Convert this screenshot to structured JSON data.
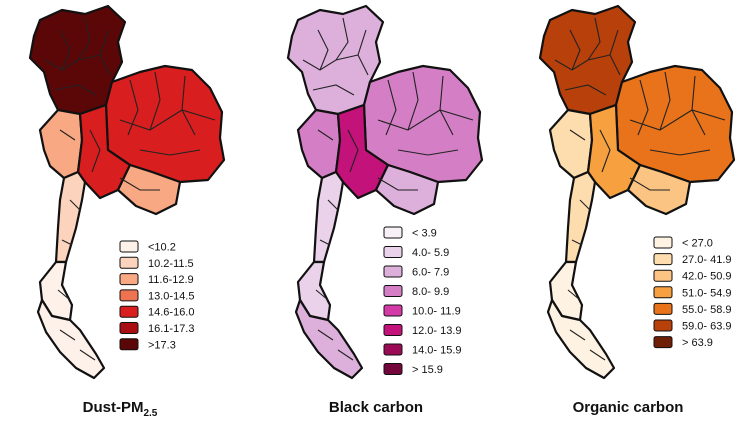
{
  "maps": [
    {
      "caption": "Dust-PM",
      "caption_sub": "2.5",
      "legend": [
        {
          "label": "<10.2",
          "color": "#fdf1ea"
        },
        {
          "label": "10.2-11.5",
          "color": "#fcd3bd"
        },
        {
          "label": "11.6-12.9",
          "color": "#f8a882"
        },
        {
          "label": "13.0-14.5",
          "color": "#ee7350"
        },
        {
          "label": "14.6-16.0",
          "color": "#d81e1e"
        },
        {
          "label": "16.1-17.3",
          "color": "#a80e12"
        },
        {
          "label": ">17.3",
          "color": "#5c0707"
        }
      ],
      "region_classes": {
        "north": 6,
        "northeast": 4,
        "center": 4,
        "west": 2,
        "east": 2,
        "southupper": 1,
        "southmid": 0,
        "southlow": 0
      }
    },
    {
      "caption": "Black carbon",
      "legend": [
        {
          "label": "< 3.9",
          "color": "#f7f0f7"
        },
        {
          "label": "4.0- 5.9",
          "color": "#ead2ea"
        },
        {
          "label": "6.0- 7.9",
          "color": "#ddb0dc"
        },
        {
          "label": "8.0- 9.9",
          "color": "#d47fc5"
        },
        {
          "label": "10.0- 11.9",
          "color": "#d33aa8"
        },
        {
          "label": "12.0- 13.9",
          "color": "#c3127a"
        },
        {
          "label": "14.0- 15.9",
          "color": "#9b0a55"
        },
        {
          "label": "> 15.9",
          "color": "#73073c"
        }
      ],
      "region_classes": {
        "north": 2,
        "northeast": 3,
        "center": 5,
        "west": 3,
        "east": 2,
        "southupper": 1,
        "southmid": 1,
        "southlow": 2
      }
    },
    {
      "caption": "Organic carbon",
      "legend": [
        {
          "label": "< 27.0",
          "color": "#fef3e3"
        },
        {
          "label": "27.0- 41.9",
          "color": "#fddcae"
        },
        {
          "label": "42.0- 50.9",
          "color": "#fcc482"
        },
        {
          "label": "51.0- 54.9",
          "color": "#f7a03f"
        },
        {
          "label": "55.0- 58.9",
          "color": "#e8731a"
        },
        {
          "label": "59.0- 63.9",
          "color": "#b8400b"
        },
        {
          "label": "> 63.9",
          "color": "#6e1f06"
        }
      ],
      "region_classes": {
        "north": 5,
        "northeast": 4,
        "center": 3,
        "west": 1,
        "east": 2,
        "southupper": 1,
        "southmid": 0,
        "southlow": 0
      }
    }
  ]
}
